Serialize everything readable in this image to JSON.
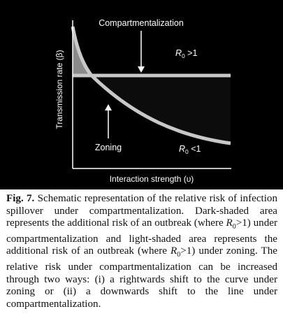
{
  "figure": {
    "annotation_top": "Compartmentalization",
    "annotation_bottom": "Zoning",
    "region_upper": {
      "symbol": "R",
      "subscript": "0",
      "relation": " >1"
    },
    "region_lower": {
      "symbol": "R",
      "subscript": "0",
      "relation": " <1"
    },
    "ylabel": "Transmission rate (β)",
    "xlabel": "Interaction strength (υ)",
    "colors": {
      "background": "#000000",
      "curve": "#c8c8c8",
      "light_shade": "#8a8a8a",
      "dark_shade": "#0c0c0c",
      "text": "#ffffff"
    }
  },
  "caption": {
    "label": "Fig. 7.",
    "text": "Schematic representation of the relative risk of in­fection spillover under compartmentalization. Dark-shaded area represents the additional risk of an outbreak (where R0>1) under compartmentalization and light-shaded area represents the additional risk of an outbreak (where R0>1) under zoning. The relative risk under compartmentaliza­tion can be increased through two ways: (i) a rightwards shift to the curve under zoning or (ii) a downwards shift to the line under compartmentalization."
  }
}
